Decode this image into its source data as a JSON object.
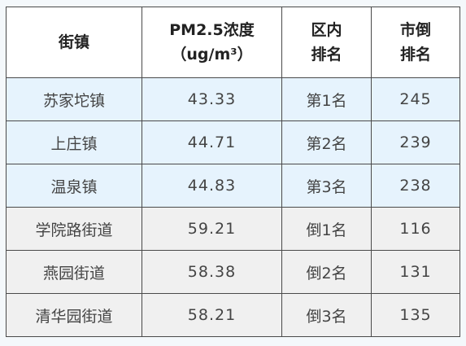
{
  "table": {
    "headers": {
      "town": "街镇",
      "pm25_line1": "PM2.5浓度",
      "pm25_line2": "（ug/m³）",
      "district_rank_line1": "区内",
      "district_rank_line2": "排名",
      "city_rank_line1": "市倒",
      "city_rank_line2": "排名"
    },
    "rows": [
      {
        "group": "best",
        "town": "苏家坨镇",
        "pm25": "43.33",
        "district_rank": "第1名",
        "city_rank": "245"
      },
      {
        "group": "best",
        "town": "上庄镇",
        "pm25": "44.71",
        "district_rank": "第2名",
        "city_rank": "239"
      },
      {
        "group": "best",
        "town": "温泉镇",
        "pm25": "44.83",
        "district_rank": "第3名",
        "city_rank": "238"
      },
      {
        "group": "worst",
        "town": "学院路街道",
        "pm25": "59.21",
        "district_rank": "倒1名",
        "city_rank": "116"
      },
      {
        "group": "worst",
        "town": "燕园街道",
        "pm25": "58.38",
        "district_rank": "倒2名",
        "city_rank": "131"
      },
      {
        "group": "worst",
        "town": "清华园街道",
        "pm25": "58.21",
        "district_rank": "倒3名",
        "city_rank": "135"
      }
    ]
  },
  "colors": {
    "best_row_background": "#e6f3fd",
    "worst_row_background": "#f0f0f0",
    "border": "#4a4a4a",
    "page_background": "#f4f8fb"
  }
}
